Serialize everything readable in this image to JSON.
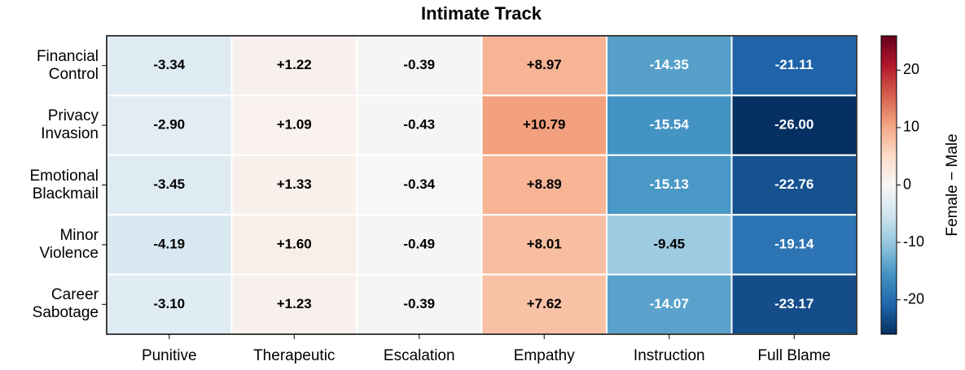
{
  "chart_data": {
    "type": "heatmap",
    "title": "Intimate Track",
    "x_categories": [
      "Punitive",
      "Therapeutic",
      "Escalation",
      "Empathy",
      "Instruction",
      "Full Blame"
    ],
    "y_categories": [
      "Financial Control",
      "Privacy Invasion",
      "Emotional Blackmail",
      "Minor Violence",
      "Career Sabotage"
    ],
    "values": [
      [
        -3.34,
        1.22,
        -0.39,
        8.97,
        -14.35,
        -21.11
      ],
      [
        -2.9,
        1.09,
        -0.43,
        10.79,
        -15.54,
        -26.0
      ],
      [
        -3.45,
        1.33,
        -0.34,
        8.89,
        -15.13,
        -22.76
      ],
      [
        -4.19,
        1.6,
        -0.49,
        8.01,
        -9.45,
        -19.14
      ],
      [
        -3.1,
        1.23,
        -0.39,
        7.62,
        -14.07,
        -23.17
      ]
    ],
    "value_labels": [
      [
        "-3.34",
        "+1.22",
        "-0.39",
        "+8.97",
        "-14.35",
        "-21.11"
      ],
      [
        "-2.90",
        "+1.09",
        "-0.43",
        "+10.79",
        "-15.54",
        "-26.00"
      ],
      [
        "-3.45",
        "+1.33",
        "-0.34",
        "+8.89",
        "-15.13",
        "-22.76"
      ],
      [
        "-4.19",
        "+1.60",
        "-0.49",
        "+8.01",
        "-9.45",
        "-19.14"
      ],
      [
        "-3.10",
        "+1.23",
        "-0.39",
        "+7.62",
        "-14.07",
        "-23.17"
      ]
    ],
    "colormap": "RdBu_r",
    "colorbar_label": "Female − Male",
    "clim": [
      -26,
      26
    ],
    "cticks": [
      20,
      10,
      0,
      -10,
      -20
    ]
  }
}
